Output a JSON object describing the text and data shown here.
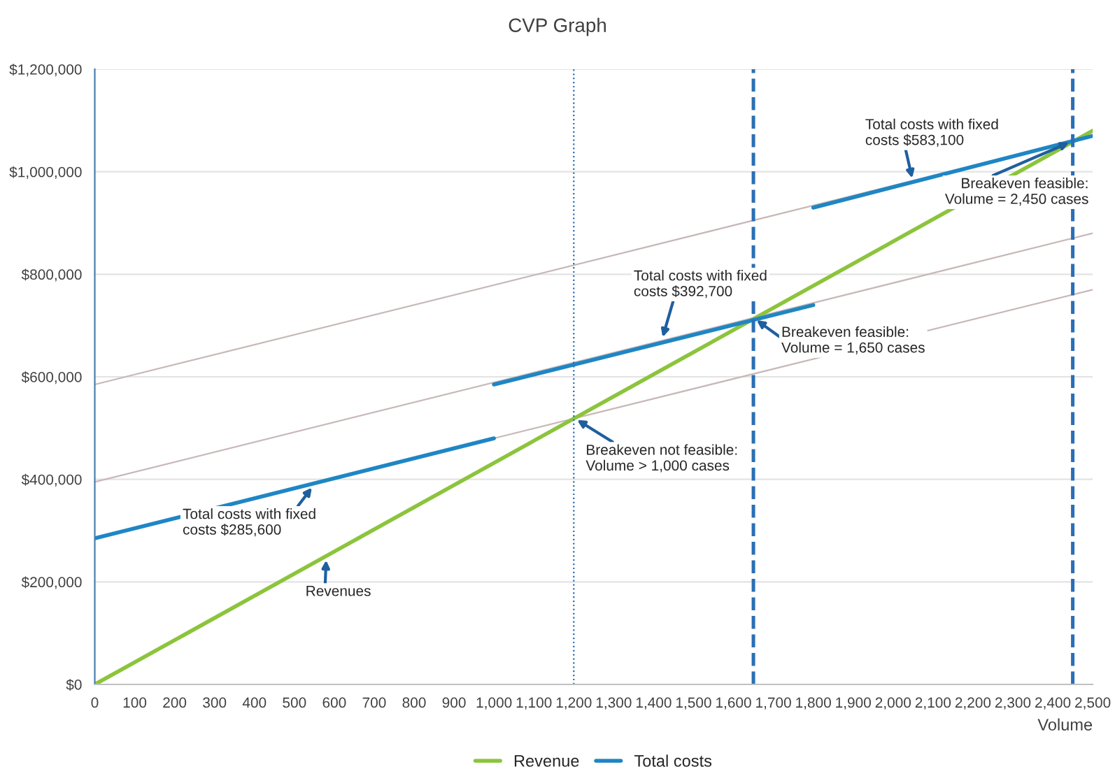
{
  "chart_data": {
    "type": "line",
    "title": "CVP Graph",
    "xlabel": "Volume",
    "xlim": [
      0,
      2500
    ],
    "xticks": [
      {
        "value": 0,
        "label": "0"
      },
      {
        "value": 100,
        "label": "100"
      },
      {
        "value": 200,
        "label": "200"
      },
      {
        "value": 300,
        "label": "300"
      },
      {
        "value": 400,
        "label": "400"
      },
      {
        "value": 500,
        "label": "500"
      },
      {
        "value": 600,
        "label": "600"
      },
      {
        "value": 700,
        "label": "700"
      },
      {
        "value": 800,
        "label": "800"
      },
      {
        "value": 900,
        "label": "900"
      },
      {
        "value": 1000,
        "label": "1,000"
      },
      {
        "value": 1100,
        "label": "1,100"
      },
      {
        "value": 1200,
        "label": "1,200"
      },
      {
        "value": 1300,
        "label": "1,300"
      },
      {
        "value": 1400,
        "label": "1,400"
      },
      {
        "value": 1500,
        "label": "1,500"
      },
      {
        "value": 1600,
        "label": "1,600"
      },
      {
        "value": 1700,
        "label": "1,700"
      },
      {
        "value": 1800,
        "label": "1,800"
      },
      {
        "value": 1900,
        "label": "1,900"
      },
      {
        "value": 2000,
        "label": "2,000"
      },
      {
        "value": 2100,
        "label": "2,100"
      },
      {
        "value": 2200,
        "label": "2,200"
      },
      {
        "value": 2300,
        "label": "2,300"
      },
      {
        "value": 2400,
        "label": "2,400"
      },
      {
        "value": 2500,
        "label": "2,500"
      }
    ],
    "ylim": [
      0,
      1200000
    ],
    "yticks": [
      {
        "value": 0,
        "label": "$0"
      },
      {
        "value": 200000,
        "label": "$200,000"
      },
      {
        "value": 400000,
        "label": "$400,000"
      },
      {
        "value": 600000,
        "label": "$600,000"
      },
      {
        "value": 800000,
        "label": "$800,000"
      },
      {
        "value": 1000000,
        "label": "$1,000,000"
      },
      {
        "value": 1200000,
        "label": "$1,200,000"
      }
    ],
    "grid": "y",
    "legend": "bottom",
    "marker": "none",
    "line_style": "solid",
    "series": [
      {
        "color": "#c9b8b8",
        "x": [
          0,
          2500
        ],
        "values": [
          585000,
          1070000
        ]
      },
      {
        "color": "#c9b8b8",
        "x": [
          0,
          2500
        ],
        "values": [
          395000,
          880000
        ]
      },
      {
        "color": "#c9b8b8",
        "x": [
          1000,
          2500
        ],
        "values": [
          480000,
          770000
        ]
      },
      {
        "name": "Revenue",
        "color": "#8cc43c",
        "x": [
          0,
          2500
        ],
        "values": [
          0,
          1080000
        ]
      },
      {
        "name": "Total costs",
        "color": "#1f86c4",
        "x": [
          0,
          1000
        ],
        "values": [
          285000,
          480000
        ]
      },
      {
        "color": "#1f86c4",
        "x": [
          1000,
          1800
        ],
        "values": [
          585000,
          740000
        ]
      },
      {
        "color": "#1f86c4",
        "x": [
          1800,
          2500
        ],
        "values": [
          930000,
          1070000
        ]
      }
    ],
    "ref_lines": [
      {
        "axis": "x",
        "value": 1200,
        "color": "#2a6fb5",
        "line_style": "dotted"
      },
      {
        "axis": "x",
        "value": 1650,
        "color": "#2a6fb5",
        "line_style": "dashed"
      },
      {
        "axis": "x",
        "value": 2450,
        "color": "#2a6fb5",
        "line_style": "dashed"
      }
    ],
    "annotations": [
      {
        "text": "Total costs with fixed\ncosts $285,600",
        "x": 550,
        "y": 390000
      },
      {
        "text": "Revenues",
        "x": 580,
        "y": 250000
      },
      {
        "text": "Breakeven not feasible:\nVolume > 1,000 cases",
        "x": 1200,
        "y": 520000
      },
      {
        "text": "Total costs with fixed\ncosts $392,700",
        "x": 1420,
        "y": 670000
      },
      {
        "text": "Breakeven feasible:\nVolume = 1,650 cases",
        "x": 1650,
        "y": 715000
      },
      {
        "text": "Total costs with fixed\ncosts $583,100",
        "x": 2050,
        "y": 980000
      },
      {
        "text": "Breakeven feasible:\nVolume = 2,450 cases",
        "x": 2450,
        "y": 1060000
      }
    ]
  }
}
